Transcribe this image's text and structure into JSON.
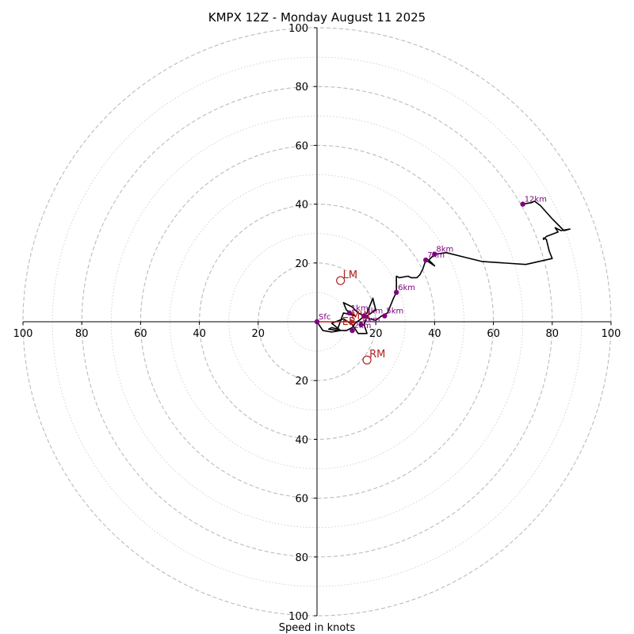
{
  "chart_data": {
    "type": "hodograph",
    "title": "KMPX 12Z - Monday August 11 2025",
    "xlabel": "Speed in knots",
    "ring_max": 100,
    "major_ring_step": 20,
    "minor_ring_step": 10,
    "x_tick_labels": [
      "100",
      "80",
      "60",
      "40",
      "20",
      "20",
      "40",
      "60",
      "80",
      "100"
    ],
    "x_tick_values": [
      -100,
      -80,
      -60,
      -40,
      -20,
      20,
      40,
      60,
      80,
      100
    ],
    "y_tick_labels": [
      "100",
      "80",
      "60",
      "40",
      "20",
      "20",
      "40",
      "60",
      "80",
      "100"
    ],
    "y_tick_values": [
      100,
      80,
      60,
      40,
      20,
      -20,
      -40,
      -60,
      -80,
      -100
    ],
    "grid": true,
    "colors": {
      "trace": "#000000",
      "height_marker": "#800080",
      "storm_motion": "#b22222",
      "grid": "#bbbbbb"
    },
    "trace": [
      [
        0,
        0
      ],
      [
        2,
        -3
      ],
      [
        5,
        -3.5
      ],
      [
        8,
        -3
      ],
      [
        5,
        -0.5
      ],
      [
        9,
        1
      ],
      [
        12,
        -1
      ],
      [
        14,
        -4
      ],
      [
        17,
        -4
      ],
      [
        16,
        -1
      ],
      [
        17,
        2
      ],
      [
        20,
        4
      ],
      [
        19,
        8
      ],
      [
        17,
        3
      ],
      [
        15,
        1
      ],
      [
        13,
        -0.5
      ],
      [
        12,
        -2
      ],
      [
        10,
        -3
      ],
      [
        7,
        -3
      ],
      [
        4,
        -2.5
      ],
      [
        5,
        -2
      ],
      [
        7,
        -2.5
      ],
      [
        9,
        3
      ],
      [
        13,
        2
      ],
      [
        10,
        4
      ],
      [
        9,
        6.5
      ],
      [
        12,
        5
      ],
      [
        14,
        3
      ],
      [
        16,
        2
      ],
      [
        18,
        1
      ],
      [
        20,
        0.5
      ],
      [
        22,
        2
      ],
      [
        24,
        3
      ],
      [
        26,
        8
      ],
      [
        27,
        10
      ],
      [
        27,
        12
      ],
      [
        27,
        15.5
      ],
      [
        28,
        15
      ],
      [
        31,
        15.5
      ],
      [
        32,
        15
      ],
      [
        34,
        15
      ],
      [
        35,
        16
      ],
      [
        36,
        18
      ],
      [
        37,
        21
      ],
      [
        40,
        19
      ],
      [
        38,
        21
      ],
      [
        39,
        22
      ],
      [
        40,
        23
      ],
      [
        44,
        23.5
      ],
      [
        50,
        22
      ],
      [
        56,
        20.5
      ],
      [
        71,
        19.5
      ],
      [
        80,
        21.5
      ],
      [
        79,
        24
      ],
      [
        78,
        28
      ],
      [
        77,
        28.5
      ],
      [
        77,
        28
      ],
      [
        78,
        29
      ],
      [
        82,
        30.5
      ],
      [
        81,
        32
      ],
      [
        83,
        31
      ],
      [
        86,
        31.5
      ],
      [
        84,
        31
      ],
      [
        80,
        35
      ],
      [
        76,
        39.5
      ],
      [
        74,
        41
      ],
      [
        73,
        40.5
      ],
      [
        70,
        40
      ]
    ],
    "height_markers": [
      {
        "label": "Sfc",
        "u": 0,
        "v": 0
      },
      {
        "label": "1km",
        "u": 11,
        "v": 3
      },
      {
        "label": "2km",
        "u": 12,
        "v": -3
      },
      {
        "label": "3km",
        "u": 16,
        "v": 2
      },
      {
        "label": "4km",
        "u": 15,
        "v": -1
      },
      {
        "label": "5km",
        "u": 23,
        "v": 2
      },
      {
        "label": "6km",
        "u": 27,
        "v": 10
      },
      {
        "label": "7km",
        "u": 37,
        "v": 21
      },
      {
        "label": "8km",
        "u": 40,
        "v": 23
      },
      {
        "label": "12km",
        "u": 70,
        "v": 40
      }
    ],
    "storm_motion": [
      {
        "label": "LM",
        "u": 8,
        "v": 14
      },
      {
        "label": "RM",
        "u": 17,
        "v": -13
      },
      {
        "label": "MW",
        "u": 14,
        "v": 2
      },
      {
        "label": "EB",
        "u": 11,
        "v": 0
      }
    ],
    "bunkers_vector": {
      "u": 13,
      "v": 0
    }
  }
}
